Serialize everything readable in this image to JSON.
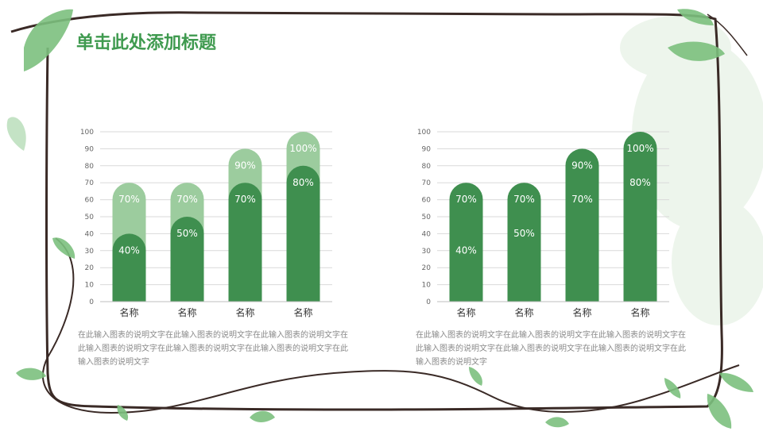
{
  "title": "单击此处添加标题",
  "colors": {
    "title": "#3f9a4f",
    "bar_dark": "#3f8f4f",
    "bar_light": "#9ccc9e",
    "grid": "#d9d9d9",
    "axis_text": "#666666",
    "category_text": "#333333",
    "frame": "#3a2a26",
    "leaf": "#7cc07e"
  },
  "chart_data": [
    {
      "type": "bar",
      "categories": [
        "名称",
        "名称",
        "名称",
        "名称"
      ],
      "series": [
        {
          "values": [
            70,
            70,
            90,
            100
          ],
          "labels": [
            "70%",
            "70%",
            "90%",
            "100%"
          ]
        },
        {
          "values": [
            40,
            50,
            70,
            80
          ],
          "labels": [
            "40%",
            "50%",
            "70%",
            "80%"
          ]
        }
      ],
      "yticks": [
        "0",
        "10",
        "20",
        "30",
        "40",
        "50",
        "60",
        "70",
        "80",
        "90",
        "100"
      ],
      "ylim": [
        0,
        100
      ],
      "grid": true,
      "legend": "none"
    },
    {
      "type": "bar",
      "categories": [
        "名称",
        "名称",
        "名称",
        "名称"
      ],
      "series": [
        {
          "values": [
            70,
            70,
            90,
            100
          ],
          "labels": [
            "70%",
            "70%",
            "90%",
            "100%"
          ]
        }
      ],
      "inner_labels": [
        [
          "40%",
          "50%",
          "70%",
          "80%"
        ]
      ],
      "yticks": [
        "0",
        "10",
        "20",
        "30",
        "40",
        "50",
        "60",
        "70",
        "80",
        "90",
        "100"
      ],
      "ylim": [
        0,
        100
      ],
      "grid": true,
      "legend": "none"
    }
  ],
  "descriptions": [
    "在此输入图表的说明文字在此输入图表的说明文字在此输入图表的说明文字在此输入图表的说明文字在此输入图表的说明文字在此输入图表的说明文字在此输入图表的说明文字",
    "在此输入图表的说明文字在此输入图表的说明文字在此输入图表的说明文字在此输入图表的说明文字在此输入图表的说明文字在此输入图表的说明文字在此输入图表的说明文字"
  ]
}
